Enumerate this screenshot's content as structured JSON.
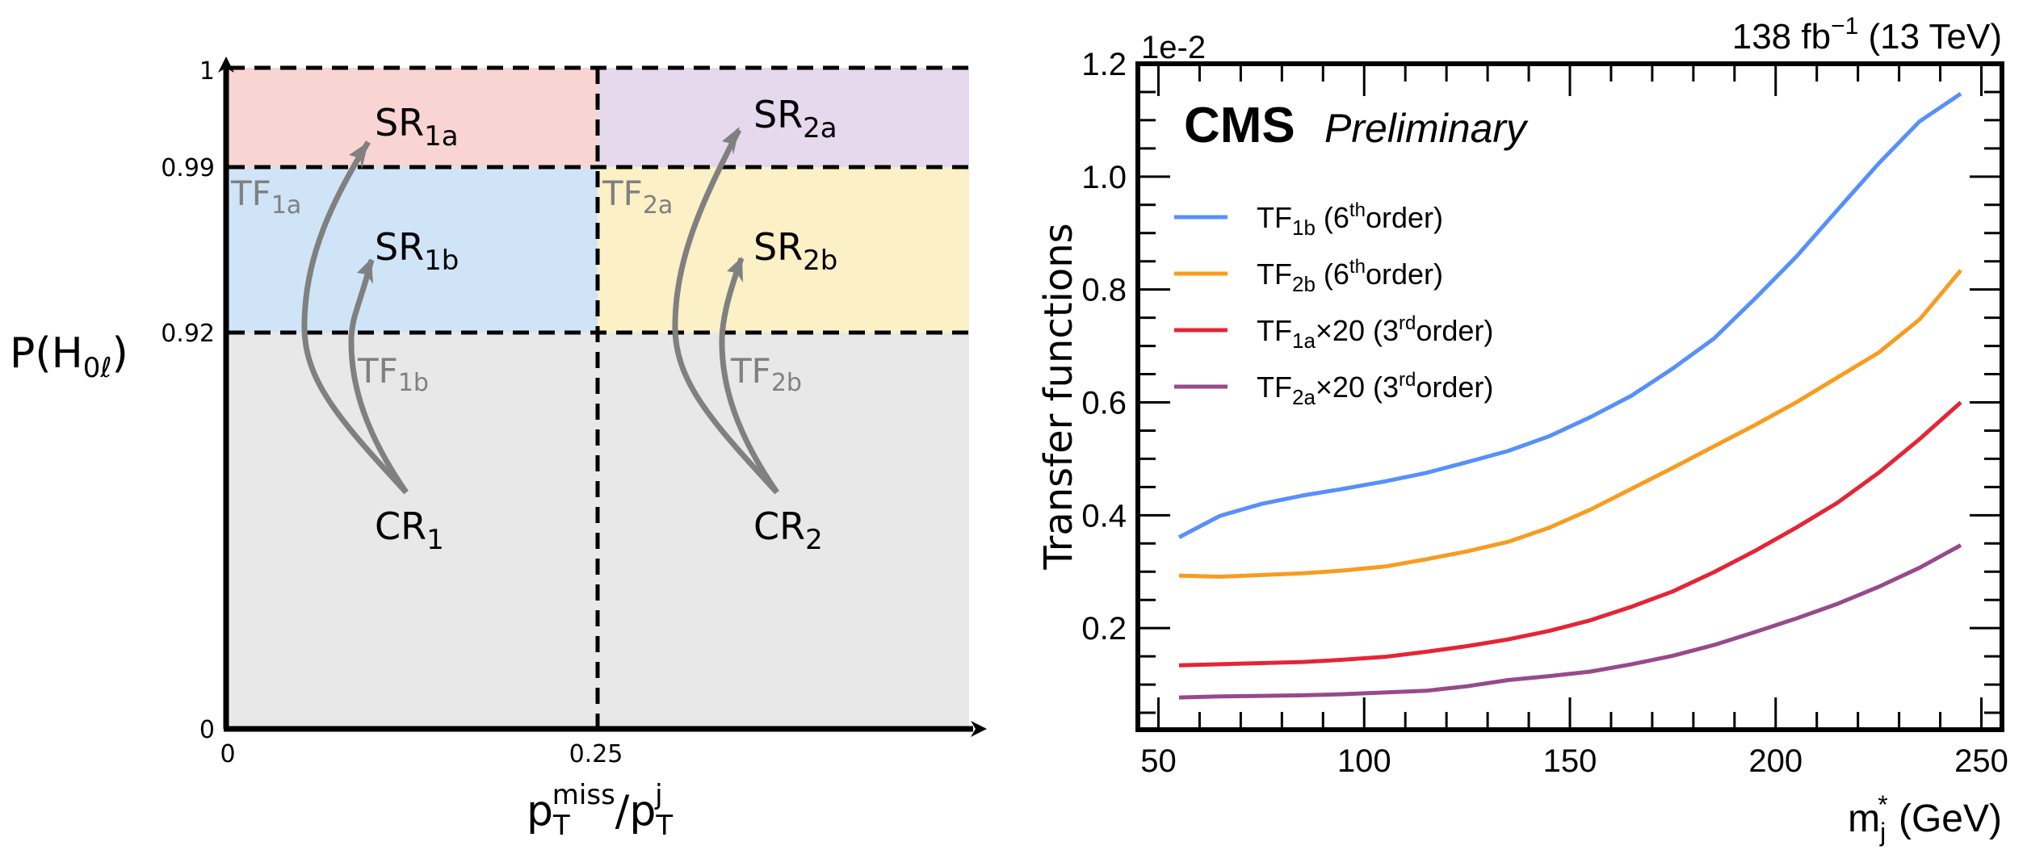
{
  "chart_data": [
    {
      "type": "diagram",
      "title": "",
      "xlabel": {
        "base": "p",
        "sub": "T",
        "sup": "miss",
        "sep": "/",
        "base2": "p",
        "sub2": "T",
        "sup2": "j"
      },
      "ylabel": {
        "text": "P(H",
        "sub": "0ℓ",
        "close": ")"
      },
      "x_ticks": [
        "0",
        "0.25"
      ],
      "y_ticks": [
        "0",
        "0.92",
        "0.99",
        "1"
      ],
      "x_boundaries": [
        0,
        0.25,
        0.5
      ],
      "y_boundaries": [
        0,
        0.92,
        0.99,
        1
      ],
      "regions": [
        {
          "name": "SR",
          "sub": "1a",
          "x_range": [
            0,
            0.25
          ],
          "y_range": [
            0.99,
            1
          ],
          "color": "#f8d4d2"
        },
        {
          "name": "SR",
          "sub": "2a",
          "x_range": [
            0.25,
            0.5
          ],
          "y_range": [
            0.99,
            1
          ],
          "color": "#e6d8ed"
        },
        {
          "name": "SR",
          "sub": "1b",
          "x_range": [
            0,
            0.25
          ],
          "y_range": [
            0.92,
            0.99
          ],
          "color": "#cfe4f7"
        },
        {
          "name": "SR",
          "sub": "2b",
          "x_range": [
            0.25,
            0.5
          ],
          "y_range": [
            0.92,
            0.99
          ],
          "color": "#fbf0c6"
        },
        {
          "name": "CR",
          "sub": "1",
          "x_range": [
            0,
            0.25
          ],
          "y_range": [
            0,
            0.92
          ],
          "color": "#e8e8e8"
        },
        {
          "name": "CR",
          "sub": "2",
          "x_range": [
            0.25,
            0.5
          ],
          "y_range": [
            0,
            0.92
          ],
          "color": "#e8e8e8"
        }
      ],
      "transfers": [
        {
          "label": "TF",
          "sub": "1a",
          "from": "CR1",
          "to": "SR1a"
        },
        {
          "label": "TF",
          "sub": "1b",
          "from": "CR1",
          "to": "SR1b"
        },
        {
          "label": "TF",
          "sub": "2a",
          "from": "CR2",
          "to": "SR2a"
        },
        {
          "label": "TF",
          "sub": "2b",
          "from": "CR2",
          "to": "SR2b"
        }
      ],
      "arrow_color": "#808080"
    },
    {
      "type": "line",
      "title": "",
      "experiment": "CMS",
      "status": "Preliminary",
      "lumi_label": {
        "value": "138 fb",
        "sup": "−1",
        "energy": " (13 TeV)"
      },
      "xlabel": {
        "base": "m",
        "sub": "j",
        "sup": "*",
        "unit": " (GeV)"
      },
      "ylabel": "Transfer functions",
      "y_multiplier": "1e-2",
      "xlim": [
        45,
        255
      ],
      "ylim": [
        0.02,
        1.2
      ],
      "x_ticks": [
        50,
        100,
        150,
        200,
        250
      ],
      "y_ticks": [
        0.2,
        0.4,
        0.6,
        0.8,
        1.0,
        1.2
      ],
      "y_tick_labels": [
        "0.2",
        "0.4",
        "0.6",
        "0.8",
        "1.0",
        "1.2"
      ],
      "grid": false,
      "legend_position": "top-left",
      "x": [
        55,
        65,
        75,
        85,
        95,
        105,
        115,
        125,
        135,
        145,
        155,
        165,
        175,
        185,
        195,
        205,
        215,
        225,
        235,
        245
      ],
      "series": [
        {
          "name": "TF1b (6th order)",
          "label": {
            "base": "TF",
            "sub": "1b",
            "pre": " (6",
            "sup": "th",
            "post": "order)"
          },
          "color": "#5790fc",
          "values": [
            0.361,
            0.399,
            0.42,
            0.435,
            0.447,
            0.46,
            0.475,
            0.494,
            0.514,
            0.54,
            0.574,
            0.612,
            0.66,
            0.713,
            0.784,
            0.858,
            0.941,
            1.023,
            1.098,
            1.147
          ]
        },
        {
          "name": "TF2b (6th order)",
          "label": {
            "base": "TF",
            "sub": "2b",
            "pre": " (6",
            "sup": "th",
            "post": "order)"
          },
          "color": "#f89c20",
          "values": [
            0.293,
            0.291,
            0.294,
            0.297,
            0.302,
            0.309,
            0.322,
            0.336,
            0.353,
            0.378,
            0.41,
            0.447,
            0.484,
            0.522,
            0.56,
            0.6,
            0.644,
            0.688,
            0.747,
            0.834
          ]
        },
        {
          "name": "TF1a×20 (3rd order)",
          "label": {
            "base": "TF",
            "sub": "1a",
            "pre": "×20 (3",
            "sup": "rd",
            "post": "order)"
          },
          "color": "#e42536",
          "values": [
            0.134,
            0.136,
            0.138,
            0.14,
            0.144,
            0.149,
            0.158,
            0.168,
            0.18,
            0.195,
            0.214,
            0.238,
            0.265,
            0.299,
            0.337,
            0.378,
            0.422,
            0.475,
            0.535,
            0.6
          ]
        },
        {
          "name": "TF2a×20 (3rd order)",
          "label": {
            "base": "TF",
            "sub": "2a",
            "pre": "×20 (3",
            "sup": "rd",
            "post": "order)"
          },
          "color": "#964a8b",
          "values": [
            0.077,
            0.079,
            0.08,
            0.081,
            0.083,
            0.086,
            0.089,
            0.097,
            0.108,
            0.115,
            0.123,
            0.136,
            0.151,
            0.17,
            0.193,
            0.217,
            0.243,
            0.273,
            0.307,
            0.347
          ]
        }
      ]
    }
  ]
}
